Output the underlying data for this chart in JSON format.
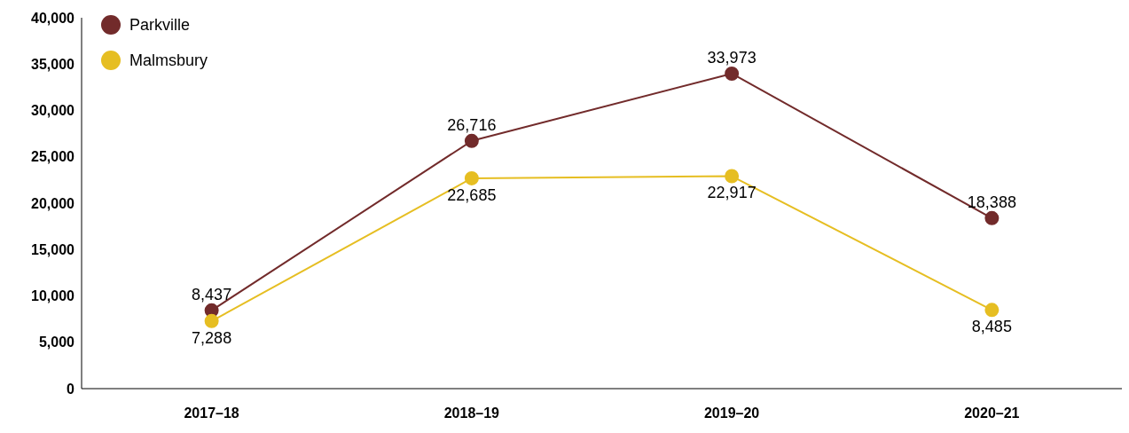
{
  "chart_data": {
    "type": "line",
    "categories": [
      "2017–18",
      "2018–19",
      "2019–20",
      "2020–21"
    ],
    "series": [
      {
        "name": "Parkville",
        "color": "#722b2b",
        "values": [
          8437,
          26716,
          33973,
          18388
        ],
        "value_labels": [
          "8,437",
          "26,716",
          "33,973",
          "18,388"
        ]
      },
      {
        "name": "Malmsbury",
        "color": "#e6be22",
        "values": [
          7288,
          22685,
          22917,
          8485
        ],
        "value_labels": [
          "7,288",
          "22,685",
          "22,917",
          "8,485"
        ]
      }
    ],
    "ylim": [
      0,
      40000
    ],
    "yticks": [
      0,
      {
        "value": 5000,
        "label": "5,000"
      },
      {
        "value": 10000,
        "label": "10,000"
      },
      {
        "value": 15000,
        "label": "15,000"
      },
      {
        "value": 20000,
        "label": "20,000"
      },
      {
        "value": 25000,
        "label": "25,000"
      },
      {
        "value": 30000,
        "label": "30,000"
      },
      {
        "value": 35000,
        "label": "35,000"
      },
      {
        "value": 40000,
        "label": "40,000"
      }
    ],
    "grid": false,
    "legend": "top left",
    "marker": "circle",
    "line_style": "solid"
  }
}
